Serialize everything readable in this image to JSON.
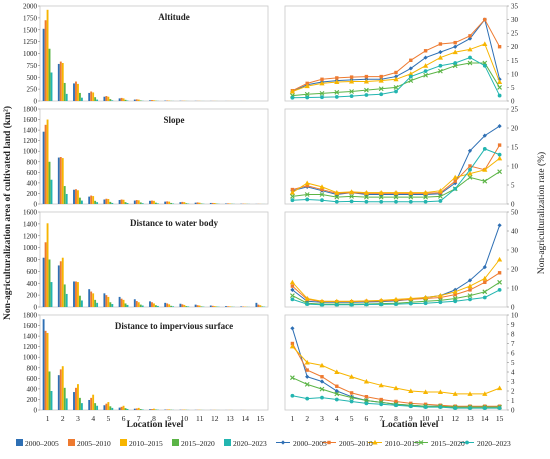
{
  "figure": {
    "ylabel_left": "Non-agriculturalization area of cultivated land (km²)",
    "ylabel_right": "Non-agriculturalization rate (%)",
    "xlabel": "Location level",
    "x_ticks": [
      "1",
      "2",
      "3",
      "4",
      "5",
      "6",
      "7",
      "8",
      "9",
      "10",
      "11",
      "12",
      "13",
      "14",
      "15"
    ]
  },
  "series_meta": [
    {
      "name": "2000–2005",
      "color": "#2e6fb4",
      "marker": "diamond"
    },
    {
      "name": "2005–2010",
      "color": "#ee7a30",
      "marker": "square"
    },
    {
      "name": "2010–2015",
      "color": "#f7b500",
      "marker": "triangle"
    },
    {
      "name": "2015–2020",
      "color": "#5bb446",
      "marker": "cross"
    },
    {
      "name": "2020–2023",
      "color": "#23b5b0",
      "marker": "circle"
    }
  ],
  "chart_data": [
    {
      "type": "bar",
      "title": "Altitude",
      "categories": [
        "1",
        "2",
        "3",
        "4",
        "5",
        "6",
        "7",
        "8",
        "9",
        "10",
        "11",
        "12",
        "13",
        "14",
        "15"
      ],
      "ylim": [
        0,
        2000
      ],
      "yticks": [
        0,
        250,
        500,
        750,
        1000,
        1250,
        1500,
        1750,
        2000
      ],
      "series": [
        {
          "name": "2000–2005",
          "values": [
            1520,
            780,
            370,
            170,
            90,
            55,
            30,
            15,
            8,
            5,
            3,
            2,
            1,
            1,
            0
          ]
        },
        {
          "name": "2005–2010",
          "values": [
            1700,
            830,
            410,
            200,
            105,
            65,
            35,
            20,
            10,
            5,
            3,
            2,
            1,
            1,
            0
          ]
        },
        {
          "name": "2010–2015",
          "values": [
            1920,
            800,
            360,
            180,
            90,
            55,
            30,
            15,
            8,
            5,
            3,
            2,
            1,
            1,
            0
          ]
        },
        {
          "name": "2015–2020",
          "values": [
            1100,
            380,
            170,
            80,
            40,
            25,
            12,
            6,
            3,
            2,
            1,
            1,
            0,
            0,
            0
          ]
        },
        {
          "name": "2020–2023",
          "values": [
            600,
            150,
            70,
            30,
            15,
            10,
            5,
            3,
            2,
            1,
            1,
            0,
            0,
            0,
            0
          ]
        }
      ]
    },
    {
      "type": "line",
      "title": "Altitude",
      "x": [
        1,
        2,
        3,
        4,
        5,
        6,
        7,
        8,
        9,
        10,
        11,
        12,
        13,
        14,
        15
      ],
      "ylim": [
        0,
        35
      ],
      "yticks": [
        0,
        5,
        10,
        15,
        20,
        25,
        30,
        35
      ],
      "series": [
        {
          "name": "2000–2005",
          "values": [
            3.5,
            6,
            7,
            7.5,
            7.8,
            8,
            8,
            9,
            12,
            16,
            18,
            20,
            23,
            30,
            8
          ]
        },
        {
          "name": "2005–2010",
          "values": [
            3.8,
            6.5,
            8,
            8.5,
            8.8,
            9,
            9,
            10.5,
            15,
            18.5,
            21,
            21.5,
            24,
            30,
            20
          ]
        },
        {
          "name": "2010–2015",
          "values": [
            3.5,
            5.5,
            6.5,
            7,
            7.2,
            7.2,
            7.5,
            8,
            10,
            13,
            16,
            18,
            19,
            21,
            7
          ]
        },
        {
          "name": "2015–2020",
          "values": [
            2,
            2.5,
            2.8,
            3.2,
            3.5,
            4,
            4.5,
            5,
            7.5,
            9.5,
            11,
            13,
            14,
            14,
            5
          ]
        },
        {
          "name": "2020–2023",
          "values": [
            1.2,
            1.3,
            1.4,
            1.5,
            1.8,
            2.2,
            2.5,
            3.5,
            9,
            11,
            13,
            14,
            16,
            13,
            2
          ]
        }
      ]
    },
    {
      "type": "bar",
      "title": "Slope",
      "categories": [
        "1",
        "2",
        "3",
        "4",
        "5",
        "6",
        "7",
        "8",
        "9",
        "10",
        "11",
        "12",
        "13",
        "14",
        "15"
      ],
      "ylim": [
        0,
        1800
      ],
      "yticks": [
        0,
        200,
        400,
        600,
        800,
        1000,
        1200,
        1400,
        1600,
        1800
      ],
      "series": [
        {
          "name": "2000–2005",
          "values": [
            1370,
            880,
            270,
            140,
            85,
            75,
            65,
            60,
            45,
            35,
            25,
            20,
            10,
            5,
            2
          ]
        },
        {
          "name": "2005–2010",
          "values": [
            1500,
            890,
            280,
            160,
            100,
            85,
            75,
            65,
            50,
            40,
            30,
            20,
            12,
            6,
            3
          ]
        },
        {
          "name": "2010–2015",
          "values": [
            1600,
            870,
            260,
            150,
            95,
            80,
            70,
            60,
            45,
            35,
            25,
            18,
            10,
            5,
            2
          ]
        },
        {
          "name": "2015–2020",
          "values": [
            800,
            340,
            120,
            60,
            40,
            35,
            30,
            25,
            20,
            15,
            10,
            8,
            5,
            3,
            1
          ]
        },
        {
          "name": "2020–2023",
          "values": [
            460,
            190,
            65,
            35,
            20,
            18,
            15,
            12,
            10,
            8,
            5,
            4,
            3,
            2,
            1
          ]
        }
      ]
    },
    {
      "type": "line",
      "title": "Slope",
      "x": [
        1,
        2,
        3,
        4,
        5,
        6,
        7,
        8,
        9,
        10,
        11,
        12,
        13,
        14,
        15
      ],
      "ylim": [
        0,
        25
      ],
      "yticks": [
        0,
        5,
        10,
        15,
        20,
        25
      ],
      "series": [
        {
          "name": "2000–2005",
          "values": [
            3.5,
            4.5,
            3.5,
            2.5,
            3,
            2.5,
            2.5,
            2.5,
            2.5,
            2.5,
            2.7,
            5.5,
            14,
            18,
            20.5
          ]
        },
        {
          "name": "2005–2010",
          "values": [
            3.8,
            4.8,
            3.8,
            2.8,
            3,
            2.8,
            2.8,
            2.8,
            2.8,
            2.8,
            3,
            6,
            10,
            9,
            15.5
          ]
        },
        {
          "name": "2010–2015",
          "values": [
            3,
            5.5,
            4.5,
            3,
            3.2,
            3,
            3,
            3,
            3,
            3,
            3.5,
            7,
            8,
            9,
            12
          ]
        },
        {
          "name": "2015–2020",
          "values": [
            2,
            2.5,
            2.5,
            1.8,
            2,
            1.8,
            1.8,
            1.8,
            1.8,
            1.8,
            2,
            4,
            7,
            6,
            8.5
          ]
        },
        {
          "name": "2020–2023",
          "values": [
            1,
            1.2,
            1,
            0.6,
            0.7,
            0.6,
            0.6,
            0.6,
            0.6,
            0.6,
            0.8,
            4,
            9,
            14.5,
            13
          ]
        }
      ]
    },
    {
      "type": "bar",
      "title": "Distance to water body",
      "categories": [
        "1",
        "2",
        "3",
        "4",
        "5",
        "6",
        "7",
        "8",
        "9",
        "10",
        "11",
        "12",
        "13",
        "14",
        "15"
      ],
      "ylim": [
        0,
        1600
      ],
      "yticks": [
        0,
        200,
        400,
        600,
        800,
        1000,
        1200,
        1400,
        1600
      ],
      "series": [
        {
          "name": "2000–2005",
          "values": [
            830,
            700,
            430,
            300,
            230,
            170,
            130,
            95,
            70,
            55,
            40,
            25,
            15,
            10,
            70
          ]
        },
        {
          "name": "2005–2010",
          "values": [
            1090,
            770,
            430,
            260,
            200,
            140,
            100,
            80,
            60,
            45,
            30,
            20,
            12,
            8,
            40
          ]
        },
        {
          "name": "2010–2015",
          "values": [
            1410,
            830,
            420,
            230,
            170,
            120,
            80,
            60,
            45,
            35,
            25,
            15,
            10,
            6,
            30
          ]
        },
        {
          "name": "2015–2020",
          "values": [
            800,
            380,
            190,
            120,
            80,
            60,
            40,
            30,
            20,
            15,
            10,
            8,
            5,
            3,
            10
          ]
        },
        {
          "name": "2020–2023",
          "values": [
            420,
            220,
            110,
            70,
            50,
            35,
            25,
            18,
            12,
            10,
            6,
            5,
            3,
            2,
            6
          ]
        }
      ]
    },
    {
      "type": "line",
      "title": "Distance to water body",
      "x": [
        1,
        2,
        3,
        4,
        5,
        6,
        7,
        8,
        9,
        10,
        11,
        12,
        13,
        14,
        15
      ],
      "ylim": [
        0,
        50
      ],
      "yticks": [
        0,
        10,
        20,
        30,
        40,
        50
      ],
      "series": [
        {
          "name": "2000–2005",
          "values": [
            9,
            3,
            2.5,
            2.5,
            2.5,
            2.6,
            2.8,
            3.2,
            4,
            5,
            6,
            9,
            14,
            21,
            43
          ]
        },
        {
          "name": "2005–2010",
          "values": [
            11,
            4,
            2.8,
            2.8,
            2.8,
            3,
            3.2,
            3.5,
            4,
            4.5,
            5,
            6.5,
            9,
            13,
            18
          ]
        },
        {
          "name": "2010–2015",
          "values": [
            13,
            4.5,
            3,
            3,
            3,
            3.2,
            3.5,
            4,
            4.5,
            5,
            6,
            8,
            11,
            15,
            25
          ]
        },
        {
          "name": "2015–2020",
          "values": [
            6,
            2,
            1.5,
            1.5,
            1.5,
            1.6,
            1.8,
            2,
            2.5,
            3,
            3.5,
            4.5,
            6,
            8,
            13
          ]
        },
        {
          "name": "2020–2023",
          "values": [
            4,
            1.5,
            1.2,
            1.2,
            1.2,
            1.3,
            1.4,
            1.5,
            1.8,
            2,
            2.5,
            3,
            4,
            5,
            9
          ]
        }
      ]
    },
    {
      "type": "bar",
      "title": "Distance to impervious surface",
      "categories": [
        "1",
        "2",
        "3",
        "4",
        "5",
        "6",
        "7",
        "8",
        "9",
        "10",
        "11",
        "12",
        "13",
        "14",
        "15"
      ],
      "ylim": [
        0,
        1800
      ],
      "yticks": [
        0,
        200,
        400,
        600,
        800,
        1000,
        1200,
        1400,
        1600,
        1800
      ],
      "series": [
        {
          "name": "2000–2005",
          "values": [
            1720,
            660,
            340,
            190,
            90,
            45,
            25,
            15,
            8,
            5,
            3,
            2,
            1,
            1,
            0
          ]
        },
        {
          "name": "2005–2010",
          "values": [
            1500,
            770,
            420,
            230,
            120,
            60,
            30,
            18,
            10,
            6,
            4,
            2,
            1,
            1,
            0
          ]
        },
        {
          "name": "2010–2015",
          "values": [
            1460,
            830,
            490,
            290,
            150,
            80,
            40,
            25,
            12,
            8,
            5,
            3,
            2,
            1,
            0
          ]
        },
        {
          "name": "2015–2020",
          "values": [
            730,
            420,
            230,
            130,
            70,
            35,
            18,
            10,
            6,
            4,
            2,
            1,
            1,
            0,
            0
          ]
        },
        {
          "name": "2020–2023",
          "values": [
            360,
            220,
            130,
            80,
            40,
            20,
            10,
            6,
            3,
            2,
            1,
            1,
            0,
            0,
            0
          ]
        }
      ]
    },
    {
      "type": "line",
      "title": "Distance to impervious surface",
      "x": [
        1,
        2,
        3,
        4,
        5,
        6,
        7,
        8,
        9,
        10,
        11,
        12,
        13,
        14,
        15
      ],
      "ylim": [
        0,
        10
      ],
      "yticks": [
        0,
        1,
        2,
        3,
        4,
        5,
        6,
        7,
        8,
        9,
        10
      ],
      "series": [
        {
          "name": "2000–2005",
          "values": [
            8.6,
            3.5,
            3,
            2,
            1.4,
            1,
            0.8,
            0.6,
            0.5,
            0.4,
            0.4,
            0.3,
            0.3,
            0.3,
            0.3
          ]
        },
        {
          "name": "2005–2010",
          "values": [
            7,
            4.2,
            3.5,
            2.5,
            1.8,
            1.4,
            1.1,
            0.9,
            0.7,
            0.6,
            0.5,
            0.4,
            0.4,
            0.4,
            0.4
          ]
        },
        {
          "name": "2010–2015",
          "values": [
            6.7,
            5,
            4.7,
            4,
            3.5,
            3,
            2.6,
            2.3,
            2,
            1.9,
            1.9,
            1.7,
            1.7,
            1.7,
            2.3
          ]
        },
        {
          "name": "2015–2020",
          "values": [
            3.4,
            2.7,
            2.2,
            1.7,
            1.3,
            1,
            0.8,
            0.6,
            0.5,
            0.4,
            0.4,
            0.3,
            0.3,
            0.3,
            0.3
          ]
        },
        {
          "name": "2020–2023",
          "values": [
            1.5,
            1.2,
            1.3,
            1.1,
            0.9,
            0.7,
            0.6,
            0.5,
            0.4,
            0.3,
            0.3,
            0.2,
            0.2,
            0.2,
            0.2
          ]
        }
      ]
    }
  ]
}
